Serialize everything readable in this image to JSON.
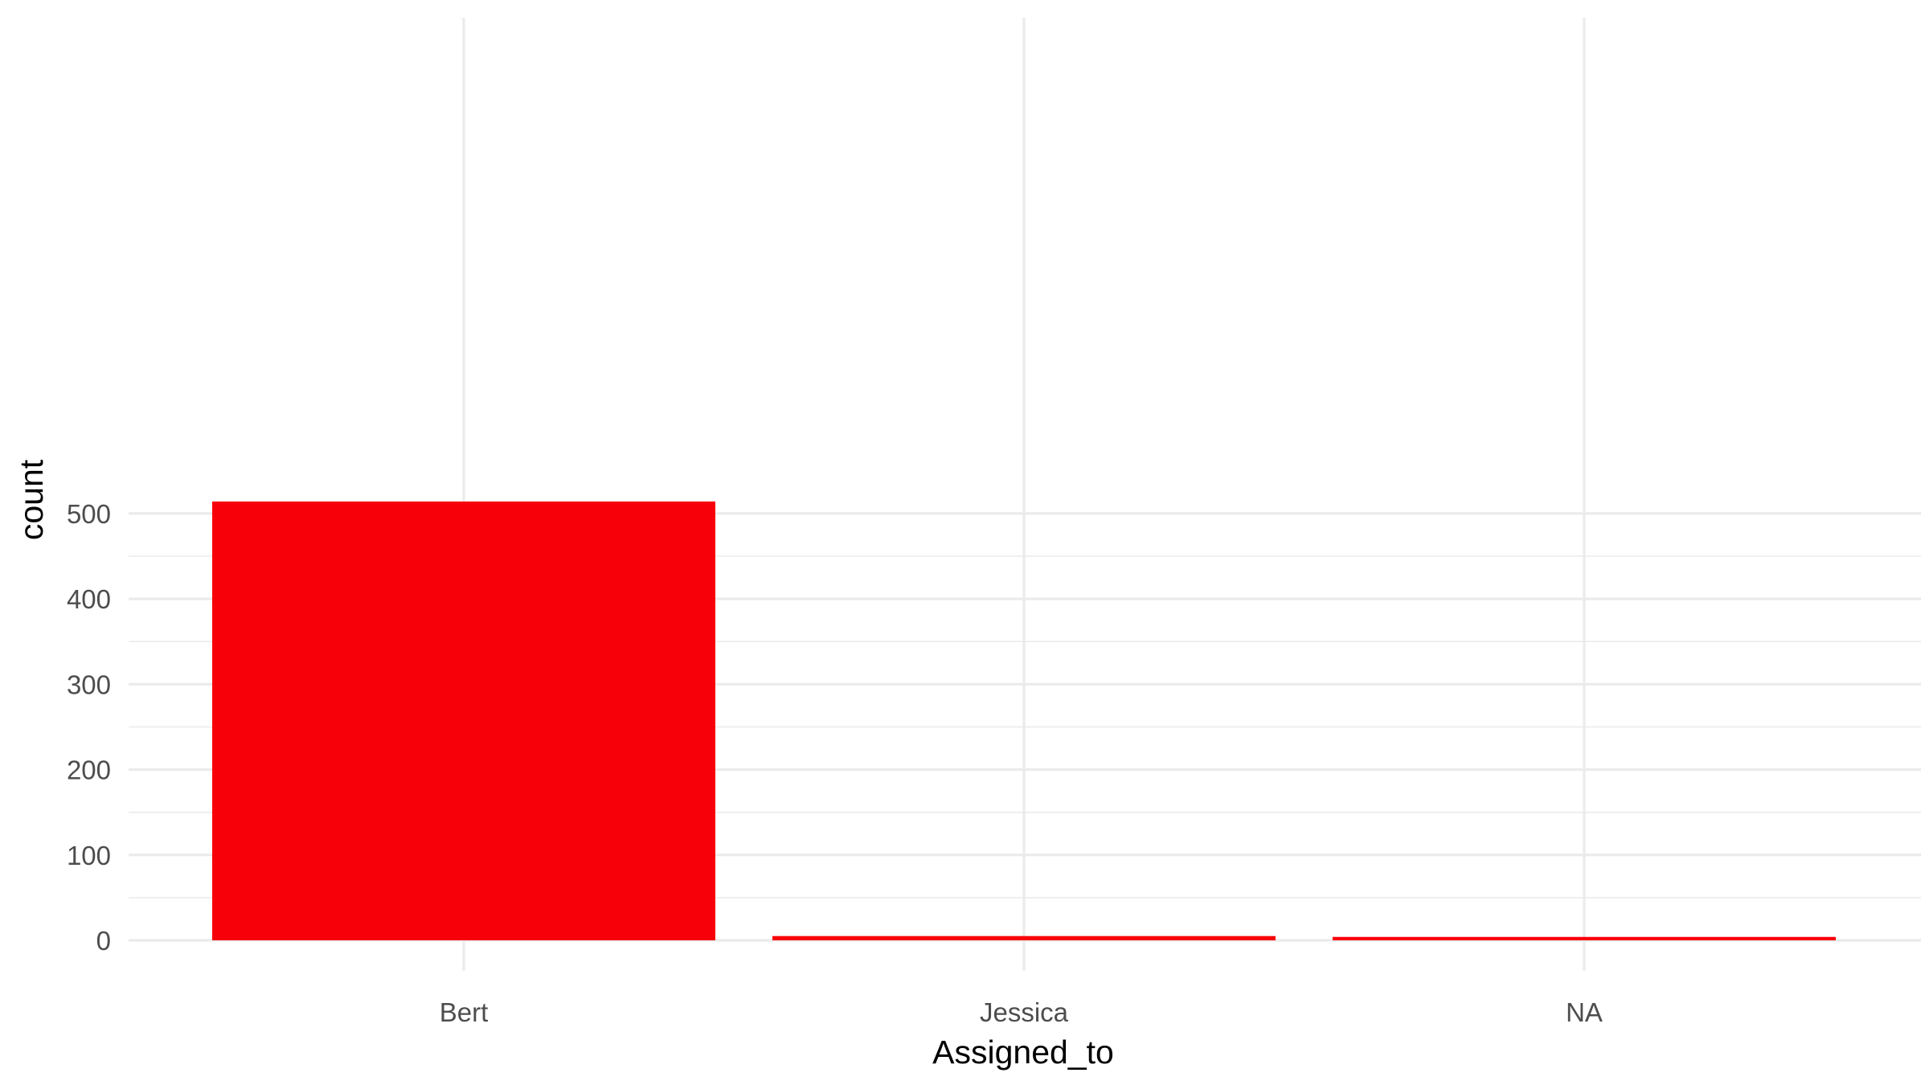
{
  "chart_data": {
    "type": "bar",
    "categories": [
      "Bert",
      "Jessica",
      "NA"
    ],
    "values": [
      514,
      5,
      4
    ],
    "xlabel": "Assigned_to",
    "ylabel": "count",
    "ylim": [
      0,
      540
    ],
    "yticks": [
      0,
      100,
      200,
      300,
      400,
      500
    ],
    "ytick_labels": [
      "0",
      "100",
      "200",
      "300",
      "400",
      "500"
    ],
    "grid": true,
    "legend": "none",
    "bar_color": "#f8000a",
    "grid_color": "#ebebeb",
    "tick_label_color": "#4d4d4d"
  }
}
